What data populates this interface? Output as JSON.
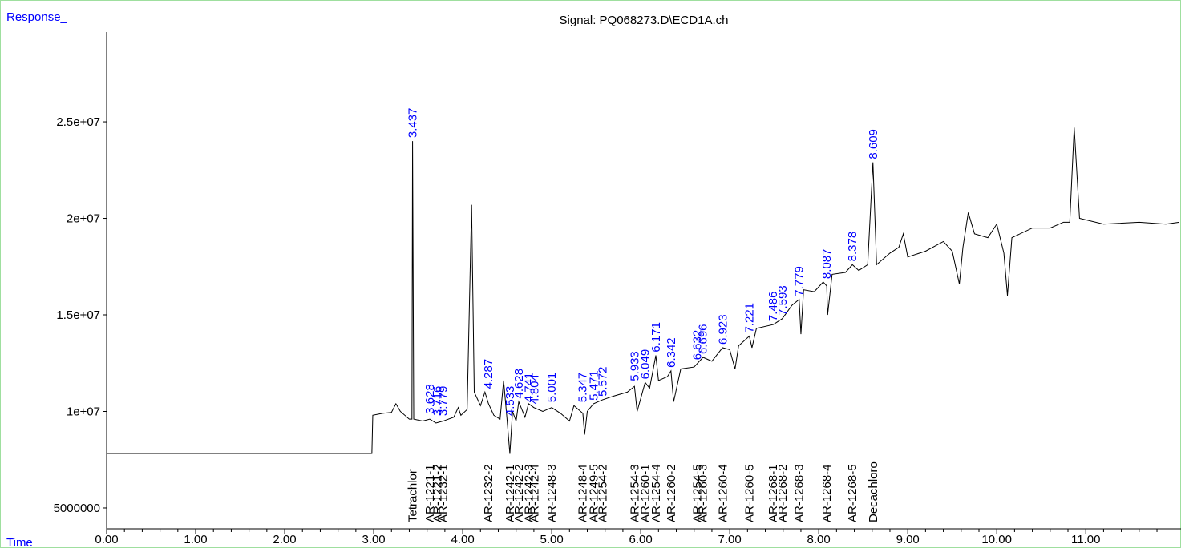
{
  "chart_data": {
    "type": "line",
    "title": "Signal: PQ068273.D\\ECD1A.ch",
    "y_label": "Response_",
    "x_label": "Time",
    "color": "#000000",
    "label_color": "#0000ff",
    "xlim": [
      0,
      12.07
    ],
    "ylim": [
      3920000,
      29650000
    ],
    "xticks": [
      {
        "value": 0,
        "label": "0.00"
      },
      {
        "value": 1,
        "label": "1.00"
      },
      {
        "value": 2,
        "label": "2.00"
      },
      {
        "value": 3,
        "label": "3.00"
      },
      {
        "value": 4,
        "label": "4.00"
      },
      {
        "value": 5,
        "label": "5.00"
      },
      {
        "value": 6,
        "label": "6.00"
      },
      {
        "value": 7,
        "label": "7.00"
      },
      {
        "value": 8,
        "label": "8.00"
      },
      {
        "value": 9,
        "label": "9.00"
      },
      {
        "value": 10,
        "label": "10.00"
      },
      {
        "value": 11,
        "label": "11.00"
      }
    ],
    "yticks": [
      5000000,
      {
        "value": 10000000,
        "label": "1e+07"
      },
      {
        "value": 15000000,
        "label": "1.5e+07"
      },
      {
        "value": 20000000,
        "label": "2e+07"
      },
      {
        "value": 25000000,
        "label": "2.5e+07"
      }
    ],
    "x": [
      0,
      2.98,
      2.99,
      3.1,
      3.2,
      3.25,
      3.3,
      3.4,
      3.43,
      3.437,
      3.45,
      3.55,
      3.63,
      3.7,
      3.78,
      3.9,
      3.95,
      3.98,
      4.05,
      4.1,
      4.13,
      4.2,
      4.25,
      4.29,
      4.35,
      4.42,
      4.46,
      4.5,
      4.53,
      4.56,
      4.6,
      4.63,
      4.7,
      4.74,
      4.8,
      4.9,
      5.0,
      5.1,
      5.2,
      5.25,
      5.35,
      5.37,
      5.4,
      5.47,
      5.57,
      5.7,
      5.85,
      5.93,
      5.96,
      6.05,
      6.1,
      6.17,
      6.2,
      6.3,
      6.34,
      6.37,
      6.45,
      6.6,
      6.7,
      6.8,
      6.92,
      7.0,
      7.06,
      7.1,
      7.22,
      7.25,
      7.3,
      7.49,
      7.59,
      7.7,
      7.78,
      7.8,
      7.83,
      7.95,
      8.05,
      8.09,
      8.1,
      8.15,
      8.3,
      8.378,
      8.45,
      8.55,
      8.609,
      8.65,
      8.8,
      8.9,
      8.95,
      9.0,
      9.2,
      9.4,
      9.5,
      9.58,
      9.62,
      9.68,
      9.75,
      9.9,
      10.0,
      10.08,
      10.12,
      10.17,
      10.4,
      10.6,
      10.75,
      10.82,
      10.87,
      10.93,
      11.2,
      11.6,
      11.9,
      12.05
    ],
    "values": [
      7820000,
      7820000,
      9800000,
      9900000,
      9950000,
      10400000,
      10000000,
      9600000,
      9600000,
      24000000,
      9600000,
      9500000,
      9600000,
      9400000,
      9500000,
      9700000,
      10200000,
      9800000,
      10100000,
      20700000,
      11000000,
      10300000,
      11000000,
      10400000,
      9800000,
      9600000,
      11600000,
      9500000,
      7800000,
      10000000,
      9500000,
      10500000,
      9700000,
      10400000,
      10200000,
      10000000,
      10200000,
      9900000,
      9500000,
      10300000,
      9900000,
      8800000,
      10000000,
      10400000,
      10600000,
      10800000,
      11000000,
      11300000,
      10000000,
      11500000,
      11200000,
      12900000,
      11600000,
      11800000,
      12100000,
      10500000,
      12200000,
      12300000,
      12800000,
      12600000,
      13300000,
      13200000,
      12200000,
      13400000,
      13900000,
      13300000,
      14300000,
      14500000,
      14800000,
      15500000,
      15800000,
      14000000,
      16300000,
      16200000,
      16700000,
      16500000,
      15000000,
      17100000,
      17200000,
      17600000,
      17300000,
      17600000,
      22900000,
      17600000,
      18200000,
      18500000,
      19200000,
      18000000,
      18300000,
      18800000,
      18300000,
      16600000,
      18500000,
      20300000,
      19200000,
      19000000,
      19700000,
      18200000,
      16000000,
      19000000,
      19500000,
      19500000,
      19800000,
      19800000,
      24700000,
      20000000,
      19700000,
      19800000,
      19700000,
      19800000
    ],
    "peaks": {
      "x": [
        3.437,
        3.628,
        3.716,
        3.779,
        4.287,
        4.533,
        4.628,
        4.741,
        4.804,
        5.001,
        5.347,
        5.471,
        5.572,
        5.933,
        6.049,
        6.171,
        6.342,
        6.632,
        6.696,
        6.923,
        7.221,
        7.486,
        7.593,
        7.779,
        8.087,
        8.378,
        8.609
      ],
      "y": [
        24000000,
        9700000,
        9600000,
        9600000,
        11000000,
        9600000,
        10500000,
        10300000,
        10200000,
        10300000,
        10300000,
        10400000,
        10600000,
        11400000,
        11500000,
        12900000,
        12100000,
        12500000,
        12800000,
        13300000,
        13900000,
        14500000,
        14800000,
        15800000,
        16700000,
        17600000,
        22900000
      ]
    },
    "compounds": [
      {
        "x": 3.437,
        "label": "Tetrachlor"
      },
      {
        "x": 3.628,
        "label": "AR-1221-1"
      },
      {
        "x": 3.716,
        "label": "AR-1221-2"
      },
      {
        "x": 3.779,
        "label": "AR-1232-1"
      },
      {
        "x": 4.287,
        "label": "AR-1232-2"
      },
      {
        "x": 4.533,
        "label": "AR-1242-1"
      },
      {
        "x": 4.628,
        "label": "AR-1242-2"
      },
      {
        "x": 4.741,
        "label": "AR-1242-3"
      },
      {
        "x": 4.804,
        "label": "AR-1242-4"
      },
      {
        "x": 5.001,
        "label": "AR-1248-3"
      },
      {
        "x": 5.347,
        "label": "AR-1248-4"
      },
      {
        "x": 5.471,
        "label": "AR-1249-5"
      },
      {
        "x": 5.572,
        "label": "AR-1254-2"
      },
      {
        "x": 5.933,
        "label": "AR-1254-3"
      },
      {
        "x": 6.049,
        "label": "AR-1260-1"
      },
      {
        "x": 6.171,
        "label": "AR-1254-4"
      },
      {
        "x": 6.342,
        "label": "AR-1260-2"
      },
      {
        "x": 6.632,
        "label": "AR-1254-5"
      },
      {
        "x": 6.696,
        "label": "AR-1260-3"
      },
      {
        "x": 6.923,
        "label": "AR-1260-4"
      },
      {
        "x": 7.221,
        "label": "AR-1260-5"
      },
      {
        "x": 7.486,
        "label": "AR-1268-1"
      },
      {
        "x": 7.593,
        "label": "AR-1268-2"
      },
      {
        "x": 7.779,
        "label": "AR-1268-3"
      },
      {
        "x": 8.087,
        "label": "AR-1268-4"
      },
      {
        "x": 8.378,
        "label": "AR-1268-5"
      },
      {
        "x": 8.609,
        "label": "Decachloro"
      }
    ]
  }
}
